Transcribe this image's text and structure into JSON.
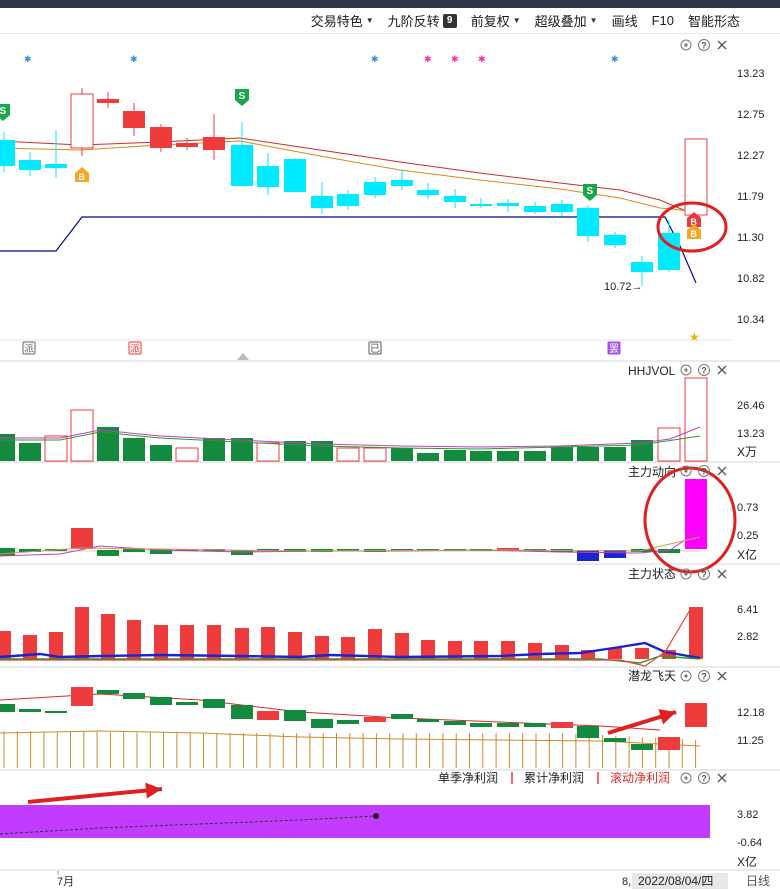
{
  "toolbar": {
    "items": [
      {
        "label": "交易特色",
        "dropdown": true
      },
      {
        "label": "九阶反转",
        "badge": "9"
      },
      {
        "label": "前复权",
        "dropdown": true
      },
      {
        "label": "超级叠加",
        "dropdown": true
      },
      {
        "label": "画线"
      },
      {
        "label": "F10"
      },
      {
        "label": "智能形态"
      }
    ]
  },
  "main_panel": {
    "y_ticks": [
      "13.23",
      "12.75",
      "12.27",
      "11.79",
      "11.30",
      "10.82",
      "10.34"
    ],
    "low_marker": "10.72",
    "bottom_tags": [
      "派",
      "派",
      "已",
      "罢"
    ]
  },
  "volume_panel": {
    "title": "HHJVOL",
    "y_ticks": [
      "26.46",
      "13.23"
    ],
    "unit": "X万"
  },
  "fund_flow_panel": {
    "title": "主力动向",
    "y_ticks": [
      "0.73",
      "0.25"
    ],
    "unit": "X亿"
  },
  "fund_state_panel": {
    "title": "主力状态",
    "y_ticks": [
      "6.41",
      "2.82"
    ]
  },
  "dragon_panel": {
    "title": "潜龙飞天",
    "y_ticks": [
      "12.18",
      "11.25"
    ]
  },
  "profit_panel": {
    "legend": [
      "单季净利润",
      "累计净利润",
      "滚动净利润"
    ],
    "y_ticks": [
      "3.82",
      "-0.64"
    ],
    "unit": "X亿"
  },
  "x_axis": {
    "month_label": "7月",
    "date_prefix": "8,",
    "date_label": "2022/08/04/四",
    "period_label": "日线"
  },
  "colors": {
    "up": "#ee3b3b",
    "down": "#0a8a3a",
    "cyan": "#00eaff",
    "magenta": "#ff00ff",
    "purple": "#c13cff",
    "navy": "#000a8a"
  },
  "icons": [
    "settings-icon",
    "help-icon",
    "close-icon",
    "signal-s-icon",
    "signal-b-icon",
    "star-icon"
  ]
}
